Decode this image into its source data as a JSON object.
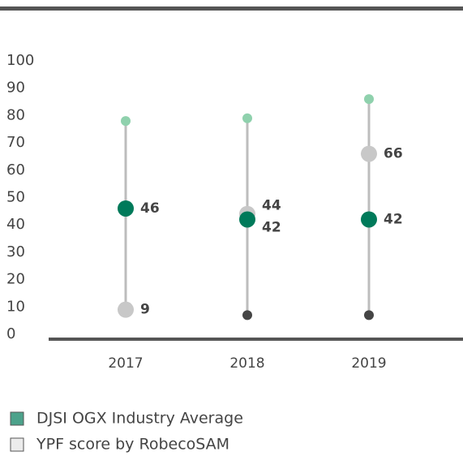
{
  "chart_data": {
    "type": "range_dot",
    "categories": [
      "2017",
      "2018",
      "2019"
    ],
    "low_values": [
      9,
      7,
      7
    ],
    "low_color": "#454545",
    "high_values": [
      78,
      79,
      86
    ],
    "high_color": "#8fd1ad",
    "series": [
      {
        "name": "DJSI OGX Industry Average",
        "color": "#007a5a",
        "values": [
          46,
          42,
          42
        ]
      },
      {
        "name": "YPF score by RobecoSAM",
        "color": "#c8c8c8",
        "values": [
          9,
          44,
          66
        ]
      }
    ],
    "ylim": [
      0,
      100
    ],
    "yticks": [
      0,
      10,
      20,
      30,
      40,
      50,
      60,
      70,
      80,
      90,
      100
    ]
  }
}
